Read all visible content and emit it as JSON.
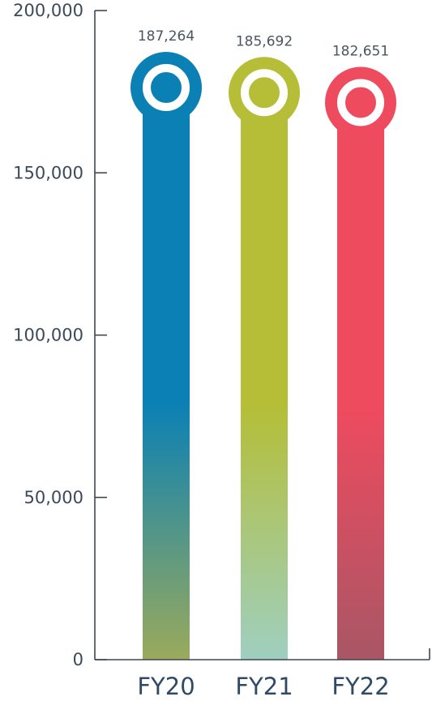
{
  "chart_data": {
    "type": "bar",
    "categories": [
      "FY20",
      "FY21",
      "FY22"
    ],
    "values": [
      187264,
      185692,
      182651
    ],
    "value_labels": [
      "187,264",
      "185,692",
      "182,651"
    ],
    "ylim": [
      0,
      200000
    ],
    "yticks": [
      0,
      50000,
      100000,
      150000,
      200000
    ],
    "ytick_labels": [
      "0",
      "50,000",
      "100,000",
      "150,000",
      "200,000"
    ],
    "title": "",
    "xlabel": "",
    "ylabel": "",
    "grid": false,
    "legend": "none",
    "colors": [
      {
        "top": "#0a80b5",
        "bottom": "#9aaa5c"
      },
      {
        "top": "#b5be36",
        "bottom": "#9fcfc0"
      },
      {
        "top": "#ee4b5f",
        "bottom": "#a95665"
      }
    ]
  }
}
